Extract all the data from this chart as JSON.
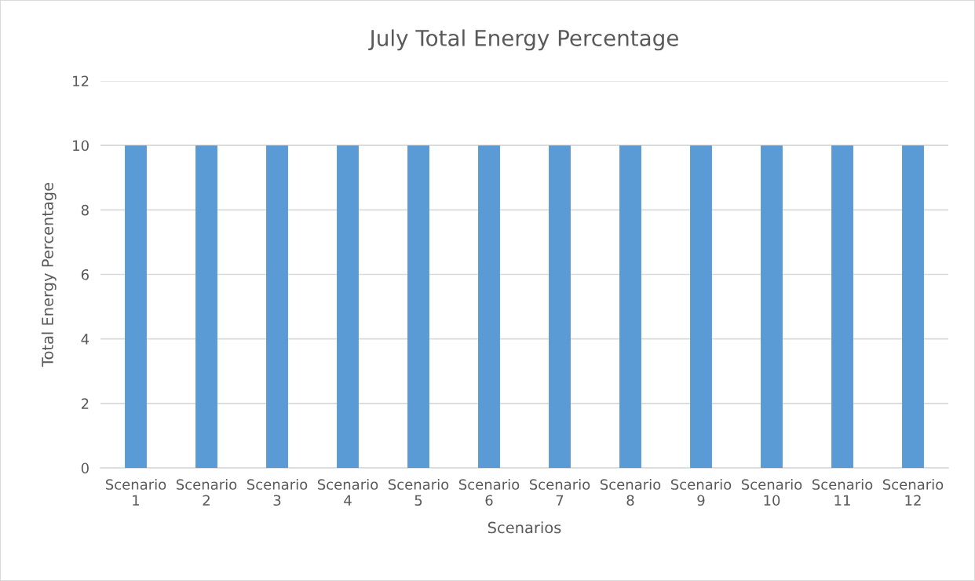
{
  "chart_data": {
    "type": "bar",
    "title": "July Total Energy Percentage",
    "xlabel": "Scenarios",
    "ylabel": "Total Energy Percentage",
    "categories": [
      "Scenario 1",
      "Scenario 2",
      "Scenario 3",
      "Scenario 4",
      "Scenario 5",
      "Scenario 6",
      "Scenario 7",
      "Scenario 8",
      "Scenario 9",
      "Scenario 10",
      "Scenario 11",
      "Scenario 12"
    ],
    "values": [
      10,
      10,
      10,
      10,
      10,
      10,
      10,
      10,
      10,
      10,
      10,
      10
    ],
    "color": "#5b9bd5",
    "ylim": [
      0,
      12
    ],
    "yticks": [
      0,
      2,
      4,
      6,
      8,
      10,
      12
    ],
    "grid": "y",
    "legend": false
  }
}
